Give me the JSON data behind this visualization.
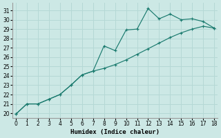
{
  "xlabel": "Humidex (Indice chaleur)",
  "bg_color": "#cce8e5",
  "grid_color": "#b5d8d5",
  "line_color": "#1a7a6e",
  "xlim": [
    -0.3,
    18.3
  ],
  "ylim": [
    19.5,
    31.8
  ],
  "xticks": [
    0,
    1,
    2,
    3,
    4,
    5,
    6,
    7,
    8,
    9,
    10,
    11,
    12,
    13,
    14,
    15,
    16,
    17,
    18
  ],
  "yticks": [
    20,
    21,
    22,
    23,
    24,
    25,
    26,
    27,
    28,
    29,
    30,
    31
  ],
  "upper_x": [
    0,
    1,
    2,
    3,
    4,
    5,
    6,
    7,
    8,
    9,
    10,
    11,
    12,
    13,
    14,
    15,
    16,
    17,
    18
  ],
  "upper_y": [
    19.9,
    21.0,
    21.0,
    21.5,
    22.0,
    23.0,
    24.1,
    24.5,
    27.2,
    26.7,
    28.9,
    29.0,
    31.2,
    30.1,
    30.6,
    30.0,
    30.1,
    29.8,
    29.1
  ],
  "lower_x": [
    0,
    1,
    2,
    3,
    4,
    5,
    6,
    7,
    8,
    9,
    10,
    11,
    12,
    13,
    14,
    15,
    16,
    17,
    18
  ],
  "lower_y": [
    19.9,
    21.0,
    21.0,
    21.5,
    22.0,
    23.0,
    24.1,
    24.5,
    24.8,
    25.2,
    25.7,
    26.3,
    26.9,
    27.5,
    28.1,
    28.6,
    29.0,
    29.3,
    29.1
  ],
  "xlabel_fontsize": 6.5,
  "tick_fontsize": 5.5
}
